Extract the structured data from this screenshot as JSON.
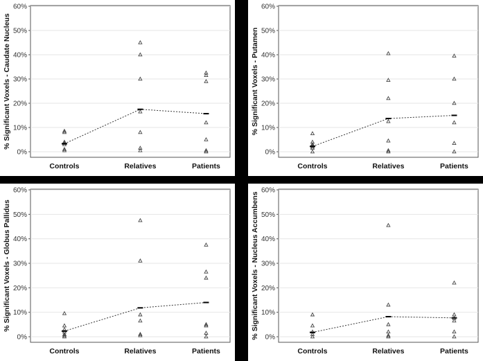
{
  "chart_data": [
    {
      "type": "scatter",
      "ylabel": "%  Significant Voxels - Caudate Nucleus",
      "categories": [
        "Controls",
        "Relatives",
        "Patients"
      ],
      "yticks": [
        "0%",
        "10%",
        "20%",
        "30%",
        "40%",
        "50%",
        "60%"
      ],
      "ylim": [
        0,
        60
      ],
      "points": [
        [
          8.5,
          8,
          4,
          3.5,
          3,
          1,
          0.5
        ],
        [
          45,
          40,
          30,
          16.5,
          8,
          1.5,
          0.5
        ],
        [
          32.5,
          31.5,
          29,
          12,
          5,
          0.5,
          0
        ]
      ],
      "means": [
        3.3,
        17.5,
        15.7
      ]
    },
    {
      "type": "scatter",
      "ylabel": "%  Significant Voxels - Putamen",
      "categories": [
        "Controls",
        "Relatives",
        "Patients"
      ],
      "yticks": [
        "0%",
        "10%",
        "20%",
        "30%",
        "40%",
        "50%",
        "60%"
      ],
      "ylim": [
        0,
        60
      ],
      "points": [
        [
          7.5,
          4,
          3,
          2.5,
          2,
          1.5,
          0
        ],
        [
          40.5,
          29.5,
          22,
          12.5,
          4.5,
          0.5,
          0
        ],
        [
          39.5,
          30,
          20,
          12,
          3.5,
          0
        ]
      ],
      "means": [
        2.2,
        13.7,
        15
      ]
    },
    {
      "type": "scatter",
      "ylabel": "%  Significant Voxels - Globus Pallidus",
      "categories": [
        "Controls",
        "Relatives",
        "Patients"
      ],
      "yticks": [
        "0%",
        "10%",
        "20%",
        "30%",
        "40%",
        "50%",
        "60%"
      ],
      "ylim": [
        0,
        60
      ],
      "points": [
        [
          9.5,
          4.5,
          3,
          2,
          1,
          0.5,
          0
        ],
        [
          47.5,
          31,
          9,
          6.5,
          1,
          0.5
        ],
        [
          37.5,
          26.5,
          24,
          5,
          4.5,
          1.5,
          0
        ]
      ],
      "means": [
        2.3,
        11.8,
        14
      ]
    },
    {
      "type": "scatter",
      "ylabel": "%  Significant Voxels - Nucleus Accumbens",
      "categories": [
        "Controls",
        "Relatives",
        "Patients"
      ],
      "yticks": [
        "0%",
        "10%",
        "20%",
        "30%",
        "40%",
        "50%",
        "60%"
      ],
      "ylim": [
        0,
        60
      ],
      "points": [
        [
          9,
          4.5,
          2,
          1,
          0
        ],
        [
          45.5,
          13,
          5,
          2,
          0.5,
          0
        ],
        [
          22,
          9,
          7.5,
          6.5,
          2,
          0
        ]
      ],
      "means": [
        1.8,
        8.2,
        7.7
      ]
    }
  ]
}
